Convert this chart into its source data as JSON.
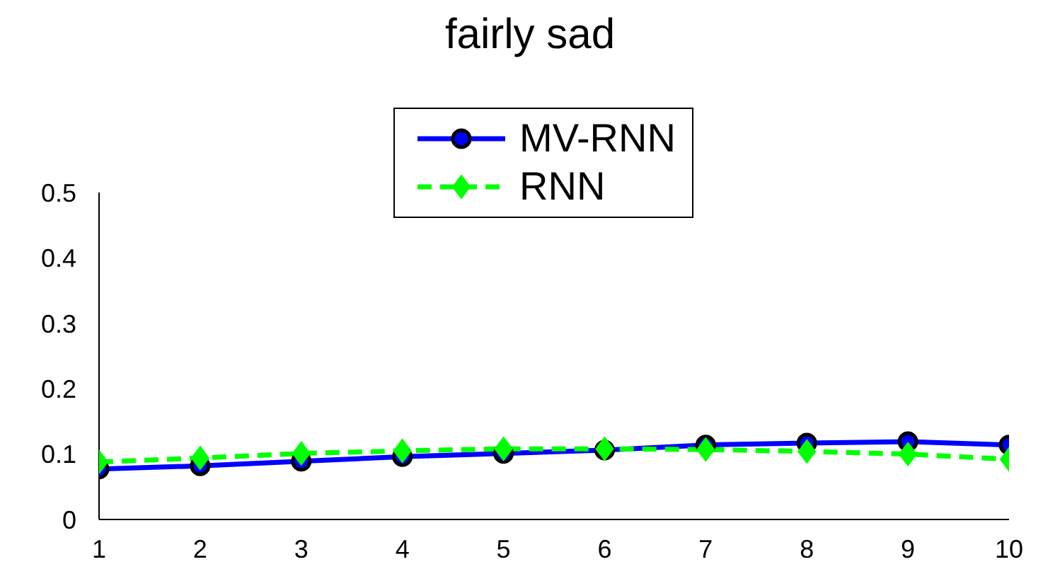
{
  "chart_data": {
    "type": "line",
    "title": "fairly sad",
    "x": [
      1,
      2,
      3,
      4,
      5,
      6,
      7,
      8,
      9,
      10
    ],
    "series": [
      {
        "name": "MV-RNN",
        "color": "#0000ff",
        "marker": "circle",
        "line_style": "solid",
        "values": [
          0.077,
          0.082,
          0.089,
          0.096,
          0.101,
          0.106,
          0.114,
          0.117,
          0.119,
          0.114
        ]
      },
      {
        "name": "RNN",
        "color": "#00ff00",
        "marker": "diamond",
        "line_style": "dashed",
        "values": [
          0.088,
          0.094,
          0.101,
          0.105,
          0.108,
          0.108,
          0.107,
          0.104,
          0.1,
          0.092
        ]
      }
    ],
    "xlim": [
      1,
      10
    ],
    "xticks": [
      1,
      2,
      3,
      4,
      5,
      6,
      7,
      8,
      9,
      10
    ],
    "ylim": [
      0,
      0.5
    ],
    "yticks": [
      0,
      0.1,
      0.2,
      0.3,
      0.4,
      0.5
    ],
    "grid": false,
    "legend": "top"
  }
}
